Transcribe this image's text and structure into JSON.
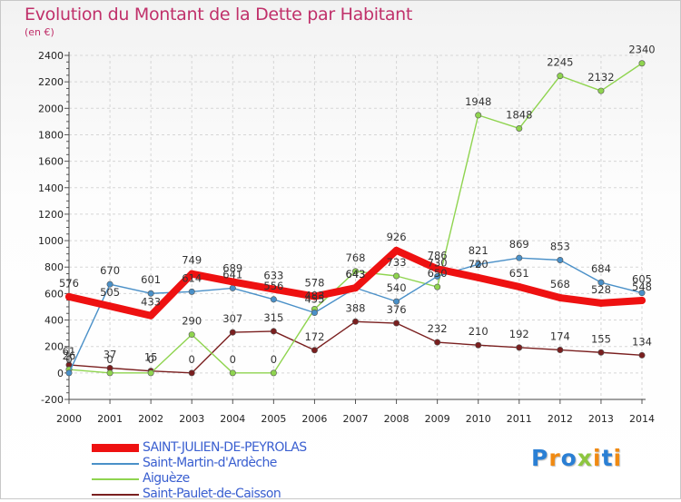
{
  "title": "Evolution du Montant de la Dette par Habitant",
  "unit": "(en €)",
  "logo": {
    "letters": [
      "P",
      "r",
      "o",
      "x",
      "i",
      "t",
      "i"
    ],
    "colors": [
      "#2a7fd4",
      "#f08a12",
      "#2a7fd4",
      "#8dc63f",
      "#f08a12",
      "#2a7fd4",
      "#f08a12"
    ]
  },
  "chart_data": {
    "type": "line",
    "x": [
      "2000",
      "2001",
      "2002",
      "2003",
      "2004",
      "2005",
      "2006",
      "2007",
      "2008",
      "2009",
      "2010",
      "2011",
      "2012",
      "2013",
      "2014"
    ],
    "ylim": [
      -200,
      2400
    ],
    "yticks": [
      "-200",
      "0",
      "200",
      "400",
      "600",
      "800",
      "1000",
      "1200",
      "1400",
      "1600",
      "1800",
      "2000",
      "2200",
      "2400"
    ],
    "grid": true,
    "legend_position": "bottom-left",
    "series": [
      {
        "name": "Saint-Paulet-de-Caisson",
        "color": "#7a1f1f",
        "values": [
          61,
          37,
          15,
          0,
          307,
          315,
          172,
          388,
          376,
          232,
          210,
          192,
          174,
          155,
          134
        ],
        "labels": [
          "61",
          "37",
          "15",
          "0",
          "307",
          "315",
          "172",
          "388",
          "376",
          "232",
          "210",
          "192",
          "174",
          "155",
          "134"
        ]
      },
      {
        "name": "Aiguèze",
        "color": "#8fd44f",
        "values": [
          26,
          0,
          0,
          290,
          0,
          0,
          483,
          768,
          733,
          650,
          1948,
          1848,
          2245,
          2132,
          2340
        ],
        "labels": [
          "26",
          "0",
          "0",
          "290",
          "0",
          "0",
          "483",
          "768",
          "733",
          "650",
          "1948",
          "1848",
          "2245",
          "2132",
          "2340"
        ]
      },
      {
        "name": "Saint-Martin-d'Ardèche",
        "color": "#4a90c8",
        "values": [
          0,
          670,
          601,
          614,
          641,
          556,
          455,
          643,
          540,
          730,
          821,
          869,
          853,
          684,
          605
        ],
        "labels": [
          "0",
          "670",
          "601",
          "614",
          "641",
          "556",
          "455",
          "643",
          "540",
          "730",
          "821",
          "869",
          "853",
          "684",
          "605"
        ]
      },
      {
        "name": "SAINT-JULIEN-DE-PEYROLAS",
        "color": "#ee1111",
        "values": [
          576,
          505,
          433,
          749,
          689,
          633,
          578,
          643,
          926,
          786,
          720,
          651,
          568,
          528,
          548
        ],
        "labels": [
          "576",
          "505",
          "433",
          "749",
          "689",
          "633",
          "578",
          "643",
          "926",
          "786",
          "720",
          "651",
          "568",
          "528",
          "548"
        ]
      }
    ]
  }
}
